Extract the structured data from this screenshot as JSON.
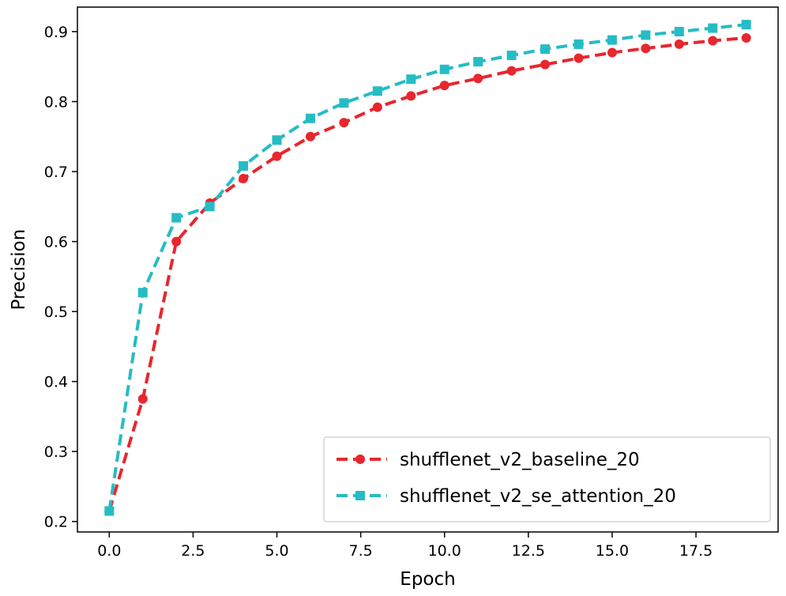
{
  "chart_data": {
    "type": "line",
    "title": "",
    "xlabel": "Epoch",
    "ylabel": "Precision",
    "xlim": [
      -0.95,
      19.95
    ],
    "ylim": [
      0.185,
      0.935
    ],
    "xticks": [
      0.0,
      2.5,
      5.0,
      7.5,
      10.0,
      12.5,
      15.0,
      17.5
    ],
    "xtick_labels": [
      "0.0",
      "2.5",
      "5.0",
      "7.5",
      "10.0",
      "12.5",
      "15.0",
      "17.5"
    ],
    "yticks": [
      0.2,
      0.3,
      0.4,
      0.5,
      0.6,
      0.7,
      0.8,
      0.9
    ],
    "ytick_labels": [
      "0.2",
      "0.3",
      "0.4",
      "0.5",
      "0.6",
      "0.7",
      "0.8",
      "0.9"
    ],
    "grid": false,
    "legend_position": "lower-right",
    "x": [
      0,
      1,
      2,
      3,
      4,
      5,
      6,
      7,
      8,
      9,
      10,
      11,
      12,
      13,
      14,
      15,
      16,
      17,
      18,
      19
    ],
    "series": [
      {
        "name": "shufflenet_v2_baseline_20",
        "color": "#e8262e",
        "marker": "circle",
        "values": [
          0.215,
          0.375,
          0.6,
          0.655,
          0.69,
          0.722,
          0.75,
          0.77,
          0.792,
          0.808,
          0.823,
          0.833,
          0.844,
          0.853,
          0.862,
          0.87,
          0.876,
          0.882,
          0.887,
          0.891
        ]
      },
      {
        "name": "shufflenet_v2_se_attention_20",
        "color": "#26bcc5",
        "marker": "square",
        "values": [
          0.215,
          0.527,
          0.634,
          0.65,
          0.708,
          0.745,
          0.776,
          0.798,
          0.815,
          0.832,
          0.846,
          0.857,
          0.866,
          0.875,
          0.882,
          0.888,
          0.895,
          0.9,
          0.905,
          0.91
        ]
      }
    ]
  }
}
